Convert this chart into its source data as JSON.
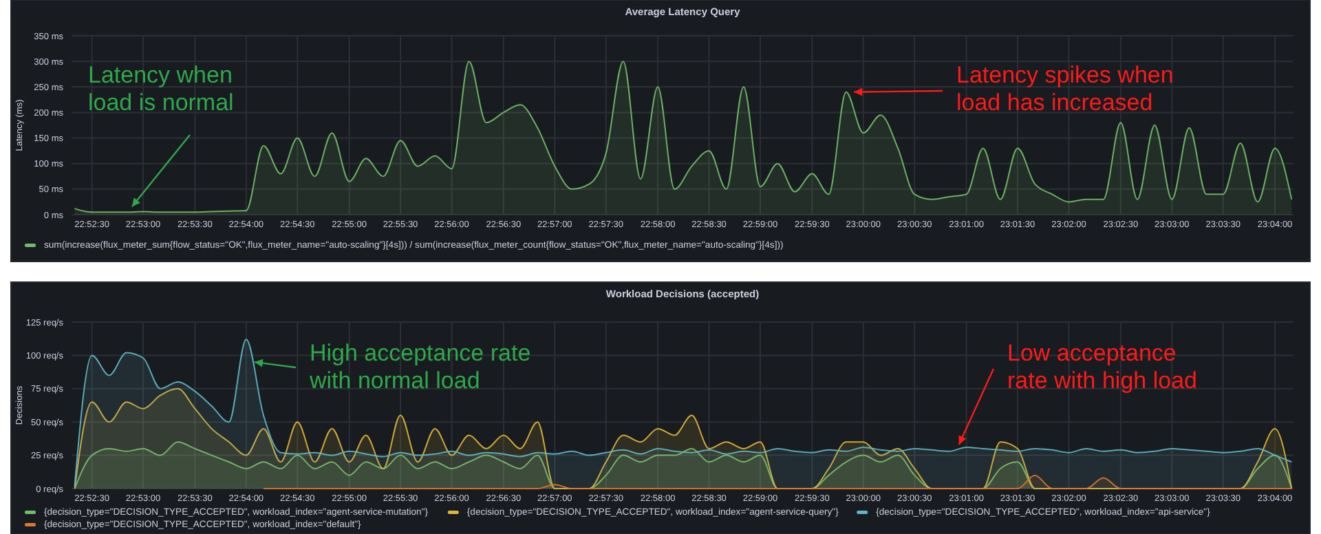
{
  "chart_data": [
    {
      "type": "area",
      "title": "Average Latency Query",
      "ylabel": "Latency (ms)",
      "grid": true,
      "legend": "bottom",
      "x": [
        22.8722,
        22.875,
        22.8778,
        22.8806,
        22.8833,
        22.8861,
        22.8889,
        22.8917,
        22.8944,
        22.8972,
        22.9,
        22.9028,
        22.9056,
        22.9083,
        22.9111,
        22.9139,
        22.9167,
        22.9194,
        22.9222,
        22.925,
        22.9278,
        22.9306,
        22.9333,
        22.9361,
        22.9389,
        22.9417,
        22.9444,
        22.9472,
        22.95,
        22.9528,
        22.9556,
        22.9583,
        22.9611,
        22.9639,
        22.9667,
        22.9694,
        22.9722,
        22.975,
        22.9778,
        22.9806,
        22.9833,
        22.9861,
        22.9889,
        22.9917,
        22.9944,
        22.9972,
        23,
        23.0028,
        23.0056,
        23.0083,
        23.0111,
        23.0139,
        23.0167,
        23.0194,
        23.0222,
        23.025,
        23.0278,
        23.0306,
        23.0333,
        23.0361,
        23.0389,
        23.0417,
        23.0444,
        23.0472,
        23.05,
        23.0528,
        23.0556,
        23.0583,
        23.0611,
        23.0639,
        23.0667,
        23.0694
      ],
      "xlim": [
        22.8717,
        23.0697
      ],
      "xticks": [
        {
          "value": 22.875,
          "label": "22:52:30"
        },
        {
          "value": 22.8833,
          "label": "22:53:00"
        },
        {
          "value": 22.8917,
          "label": "22:53:30"
        },
        {
          "value": 22.9,
          "label": "22:54:00"
        },
        {
          "value": 22.9083,
          "label": "22:54:30"
        },
        {
          "value": 22.9167,
          "label": "22:55:00"
        },
        {
          "value": 22.925,
          "label": "22:55:30"
        },
        {
          "value": 22.9333,
          "label": "22:56:00"
        },
        {
          "value": 22.9417,
          "label": "22:56:30"
        },
        {
          "value": 22.95,
          "label": "22:57:00"
        },
        {
          "value": 22.9583,
          "label": "22:57:30"
        },
        {
          "value": 22.9667,
          "label": "22:58:00"
        },
        {
          "value": 22.975,
          "label": "22:58:30"
        },
        {
          "value": 22.9833,
          "label": "22:59:00"
        },
        {
          "value": 22.9917,
          "label": "22:59:30"
        },
        {
          "value": 23,
          "label": "23:00:00"
        },
        {
          "value": 23.0083,
          "label": "23:00:30"
        },
        {
          "value": 23.0167,
          "label": "23:01:00"
        },
        {
          "value": 23.025,
          "label": "23:01:30"
        },
        {
          "value": 23.0333,
          "label": "23:02:00"
        },
        {
          "value": 23.0417,
          "label": "23:02:30"
        },
        {
          "value": 23.05,
          "label": "23:03:00"
        },
        {
          "value": 23.0583,
          "label": "23:03:30"
        },
        {
          "value": 23.0667,
          "label": "23:04:00"
        }
      ],
      "ylim": [
        0,
        350
      ],
      "yticks": [
        {
          "value": 0,
          "label": "0 ms"
        },
        {
          "value": 50,
          "label": "50 ms"
        },
        {
          "value": 100,
          "label": "100 ms"
        },
        {
          "value": 150,
          "label": "150 ms"
        },
        {
          "value": 200,
          "label": "200 ms"
        },
        {
          "value": 250,
          "label": "250 ms"
        },
        {
          "value": 300,
          "label": "300 ms"
        },
        {
          "value": 350,
          "label": "350 ms"
        }
      ],
      "series": [
        {
          "name": "sum(increase(flux_meter_sum{flow_status=\"OK\",flux_meter_name=\"auto-scaling\"}[4s])) / sum(increase(flux_meter_count{flow_status=\"OK\",flux_meter_name=\"auto-scaling\"}[4s]))",
          "color": "#73bf69",
          "values": [
            12,
            5,
            5,
            5,
            6,
            5,
            5,
            5,
            6,
            7,
            8,
            135,
            80,
            150,
            75,
            160,
            65,
            110,
            75,
            145,
            95,
            115,
            90,
            300,
            180,
            200,
            215,
            170,
            95,
            50,
            60,
            120,
            300,
            70,
            250,
            50,
            95,
            125,
            50,
            250,
            55,
            100,
            45,
            80,
            40,
            240,
            160,
            195,
            130,
            40,
            30,
            35,
            40,
            130,
            30,
            130,
            60,
            40,
            25,
            30,
            30,
            180,
            30,
            175,
            30,
            170,
            40,
            40,
            140,
            25,
            130,
            30
          ]
        }
      ],
      "annotations": [
        {
          "text": "Latency when load is normal",
          "x": 22.8806,
          "y": 5
        },
        {
          "text": "Latency spikes when load has increased",
          "x": 22.9967,
          "y": 240
        }
      ]
    },
    {
      "type": "area",
      "title": "Workload Decisions (accepted)",
      "ylabel": "Decisions",
      "grid": true,
      "legend": "bottom",
      "x": [
        22.8722,
        22.875,
        22.8778,
        22.8806,
        22.8833,
        22.8861,
        22.8889,
        22.8917,
        22.8944,
        22.8972,
        22.9,
        22.9028,
        22.9056,
        22.9083,
        22.9111,
        22.9139,
        22.9167,
        22.9194,
        22.9222,
        22.925,
        22.9278,
        22.9306,
        22.9333,
        22.9361,
        22.9389,
        22.9417,
        22.9444,
        22.9472,
        22.95,
        22.9528,
        22.9556,
        22.9583,
        22.9611,
        22.9639,
        22.9667,
        22.9694,
        22.9722,
        22.975,
        22.9778,
        22.9806,
        22.9833,
        22.9861,
        22.9889,
        22.9917,
        22.9944,
        22.9972,
        23,
        23.0028,
        23.0056,
        23.0083,
        23.0111,
        23.0139,
        23.0167,
        23.0194,
        23.0222,
        23.025,
        23.0278,
        23.0306,
        23.0333,
        23.0361,
        23.0389,
        23.0417,
        23.0444,
        23.0472,
        23.05,
        23.0528,
        23.0556,
        23.0583,
        23.0611,
        23.0639,
        23.0667,
        23.0694
      ],
      "xlim": [
        22.8717,
        23.0697
      ],
      "xticks": [
        {
          "value": 22.875,
          "label": "22:52:30"
        },
        {
          "value": 22.8833,
          "label": "22:53:00"
        },
        {
          "value": 22.8917,
          "label": "22:53:30"
        },
        {
          "value": 22.9,
          "label": "22:54:00"
        },
        {
          "value": 22.9083,
          "label": "22:54:30"
        },
        {
          "value": 22.9167,
          "label": "22:55:00"
        },
        {
          "value": 22.925,
          "label": "22:55:30"
        },
        {
          "value": 22.9333,
          "label": "22:56:00"
        },
        {
          "value": 22.9417,
          "label": "22:56:30"
        },
        {
          "value": 22.95,
          "label": "22:57:00"
        },
        {
          "value": 22.9583,
          "label": "22:57:30"
        },
        {
          "value": 22.9667,
          "label": "22:58:00"
        },
        {
          "value": 22.975,
          "label": "22:58:30"
        },
        {
          "value": 22.9833,
          "label": "22:59:00"
        },
        {
          "value": 22.9917,
          "label": "22:59:30"
        },
        {
          "value": 23,
          "label": "23:00:00"
        },
        {
          "value": 23.0083,
          "label": "23:00:30"
        },
        {
          "value": 23.0167,
          "label": "23:01:00"
        },
        {
          "value": 23.025,
          "label": "23:01:30"
        },
        {
          "value": 23.0333,
          "label": "23:02:00"
        },
        {
          "value": 23.0417,
          "label": "23:02:30"
        },
        {
          "value": 23.05,
          "label": "23:03:00"
        },
        {
          "value": 23.0583,
          "label": "23:03:30"
        },
        {
          "value": 23.0667,
          "label": "23:04:00"
        }
      ],
      "ylim": [
        0,
        125
      ],
      "yticks": [
        {
          "value": 0,
          "label": "0 req/s"
        },
        {
          "value": 25,
          "label": "25 req/s"
        },
        {
          "value": 50,
          "label": "50 req/s"
        },
        {
          "value": 75,
          "label": "75 req/s"
        },
        {
          "value": 100,
          "label": "100 req/s"
        },
        {
          "value": 125,
          "label": "125 req/s"
        }
      ],
      "series": [
        {
          "name": "{decision_type=\"DECISION_TYPE_ACCEPTED\", workload_index=\"agent-service-mutation\"}",
          "color": "#73bf69",
          "values": [
            0,
            25,
            30,
            28,
            30,
            25,
            35,
            30,
            25,
            20,
            15,
            20,
            15,
            25,
            15,
            20,
            10,
            20,
            15,
            25,
            15,
            20,
            15,
            20,
            25,
            20,
            15,
            25,
            0,
            0,
            0,
            10,
            25,
            20,
            25,
            25,
            30,
            20,
            25,
            20,
            25,
            0,
            0,
            0,
            10,
            20,
            25,
            20,
            25,
            10,
            0,
            0,
            0,
            0,
            15,
            20,
            0,
            0,
            0,
            0,
            0,
            0,
            0,
            0,
            0,
            0,
            0,
            0,
            0,
            15,
            25,
            0
          ]
        },
        {
          "name": "{decision_type=\"DECISION_TYPE_ACCEPTED\", workload_index=\"agent-service-query\"}",
          "color": "#e0b53a",
          "values": [
            0,
            65,
            50,
            65,
            60,
            70,
            75,
            60,
            45,
            35,
            25,
            45,
            20,
            50,
            20,
            45,
            20,
            40,
            15,
            55,
            20,
            45,
            25,
            40,
            30,
            40,
            30,
            50,
            0,
            0,
            0,
            20,
            40,
            35,
            45,
            40,
            55,
            30,
            35,
            30,
            35,
            0,
            0,
            0,
            15,
            35,
            35,
            25,
            30,
            15,
            0,
            0,
            0,
            0,
            35,
            30,
            0,
            0,
            0,
            0,
            0,
            0,
            0,
            0,
            0,
            0,
            0,
            0,
            0,
            20,
            45,
            0
          ]
        },
        {
          "name": "{decision_type=\"DECISION_TYPE_ACCEPTED\", workload_index=\"api-service\"}",
          "color": "#5fb8c8",
          "values": [
            2,
            100,
            85,
            102,
            98,
            75,
            80,
            73,
            62,
            50,
            112,
            55,
            27,
            26,
            27,
            25,
            28,
            26,
            24,
            27,
            25,
            26,
            28,
            25,
            27,
            26,
            24,
            27,
            26,
            28,
            25,
            27,
            29,
            26,
            30,
            28,
            27,
            29,
            26,
            28,
            27,
            30,
            28,
            27,
            29,
            28,
            31,
            29,
            28,
            30,
            29,
            28,
            31,
            30,
            29,
            28,
            30,
            29,
            27,
            30,
            28,
            29,
            27,
            28,
            30,
            29,
            28,
            27,
            28,
            30,
            25,
            20
          ]
        },
        {
          "name": "{decision_type=\"DECISION_TYPE_ACCEPTED\", workload_index=\"default\"}",
          "color": "#e0752d",
          "values": [
            null,
            null,
            null,
            null,
            null,
            null,
            null,
            null,
            null,
            null,
            null,
            0,
            0,
            0,
            0,
            0,
            0,
            0,
            0,
            0,
            0,
            0,
            0,
            0,
            0,
            0,
            0,
            0,
            3,
            0,
            0,
            0,
            0,
            0,
            0,
            0,
            0,
            0,
            0,
            0,
            0,
            0,
            0,
            0,
            0,
            0,
            0,
            0,
            0,
            0,
            0,
            0,
            0,
            0,
            0,
            0,
            10,
            0,
            0,
            0,
            8,
            0,
            0,
            0,
            0,
            0,
            0,
            0,
            0,
            0,
            0,
            0
          ]
        }
      ],
      "annotations": [
        {
          "text": "High acceptance rate with normal load",
          "x": 22.9,
          "y": 95
        },
        {
          "text": "Low acceptance rate with high load",
          "x": 23.0155,
          "y": 30
        }
      ]
    }
  ]
}
